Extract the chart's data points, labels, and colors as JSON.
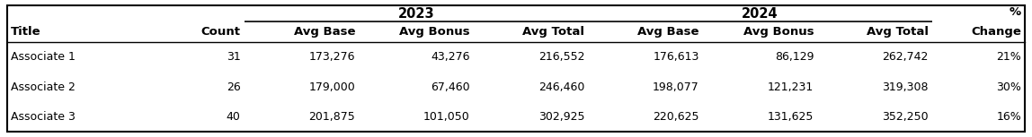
{
  "title_2023": "2023",
  "title_2024": "2024",
  "pct_label_top": "%",
  "pct_label_bot": "Change",
  "col_headers": [
    "Title",
    "Count",
    "Avg Base",
    "Avg Bonus",
    "Avg Total",
    "Avg Base",
    "Avg Bonus",
    "Avg Total",
    "Change"
  ],
  "rows": [
    [
      "Associate 1",
      "31",
      "173,276",
      "43,276",
      "216,552",
      "176,613",
      "86,129",
      "262,742",
      "21%"
    ],
    [
      "Associate 2",
      "26",
      "179,000",
      "67,460",
      "246,460",
      "198,077",
      "121,231",
      "319,308",
      "30%"
    ],
    [
      "Associate 3",
      "40",
      "201,875",
      "101,050",
      "302,925",
      "220,625",
      "131,625",
      "352,250",
      "16%"
    ]
  ],
  "text_color": "#000000",
  "border_color": "#000000",
  "background_color": "#ffffff",
  "font_size": 9.0,
  "group_header_font_size": 10.5,
  "col_header_font_size": 9.5
}
